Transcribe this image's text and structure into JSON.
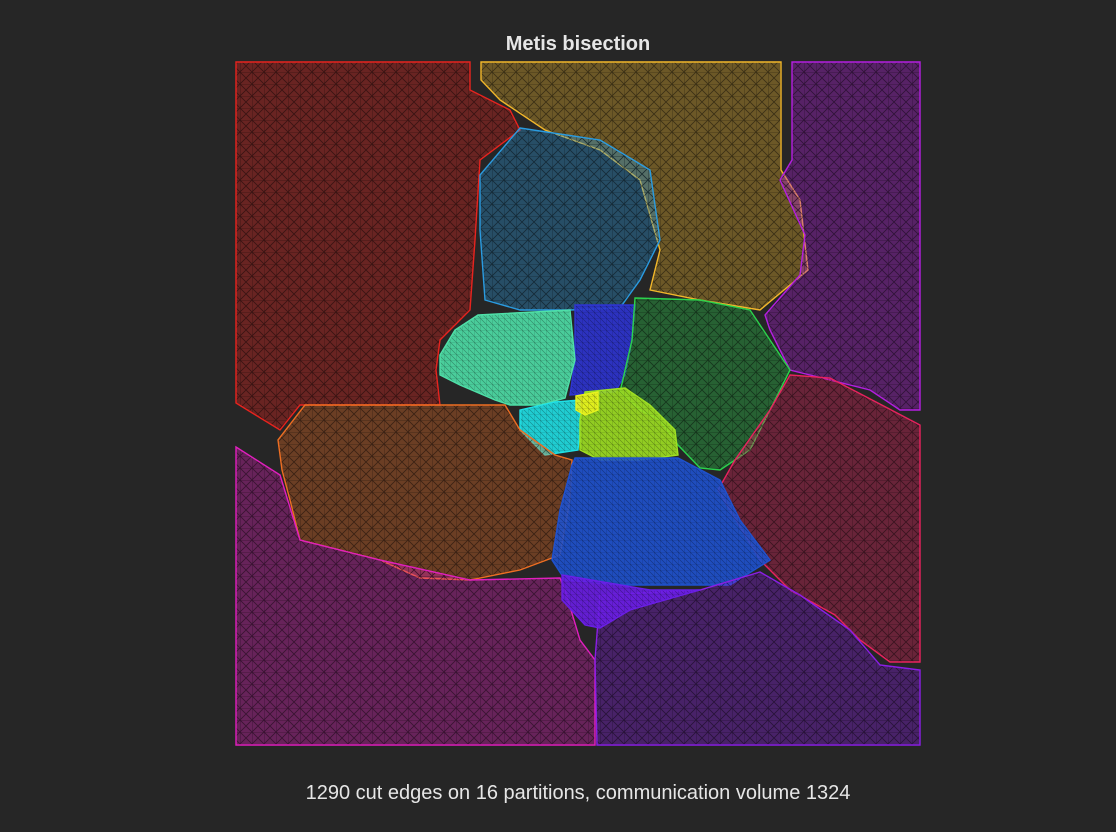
{
  "figure": {
    "title": "Metis bisection",
    "caption": "1290 cut edges on 16 partitions, communication volume 1324"
  },
  "partition_count": 16,
  "partition_colors": [
    {
      "name": "red",
      "color": "#e8231e"
    },
    {
      "name": "gold",
      "color": "#f2b72a"
    },
    {
      "name": "magenta-right",
      "color": "#b41ee0"
    },
    {
      "name": "sky-blue",
      "color": "#2a9be0"
    },
    {
      "name": "blue",
      "color": "#2e34d2"
    },
    {
      "name": "mint",
      "color": "#4fe0a8"
    },
    {
      "name": "green",
      "color": "#2bd24c"
    },
    {
      "name": "cyan",
      "color": "#20e0e6"
    },
    {
      "name": "yellow-green",
      "color": "#9fe022"
    },
    {
      "name": "yellow",
      "color": "#e8f21e"
    },
    {
      "name": "orange",
      "color": "#ee6e22"
    },
    {
      "name": "crimson",
      "color": "#e8225e"
    },
    {
      "name": "royal-blue",
      "color": "#1f52cf"
    },
    {
      "name": "pink",
      "color": "#e11fbe"
    },
    {
      "name": "violet",
      "color": "#8a1ee6"
    },
    {
      "name": "purple",
      "color": "#6a1ee6"
    }
  ]
}
